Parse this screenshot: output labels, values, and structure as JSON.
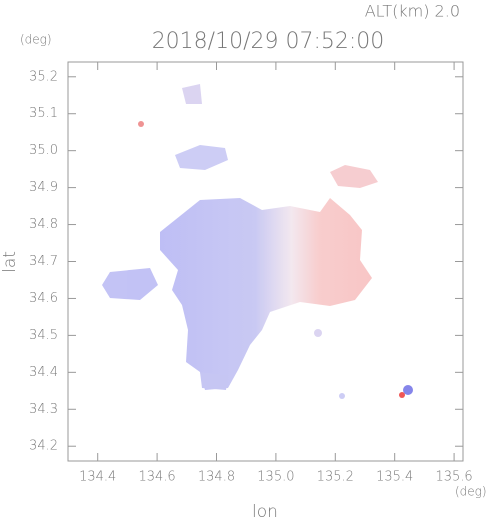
{
  "chart_data": {
    "type": "map",
    "title": "2018/10/29 07:52:00",
    "annotation": "ALT(km) 2.0",
    "x_label": "lon",
    "x_unit": "(deg)",
    "y_label": "lat",
    "y_unit": "(deg)",
    "xlim": [
      134.3,
      135.63
    ],
    "xticks": [
      134.4,
      134.6,
      134.8,
      {
        "value": 135,
        "label": "135.0"
      },
      135.2,
      135.4,
      135.6
    ],
    "ylim": [
      34.16,
      35.24
    ],
    "yticks": [
      34.2,
      34.3,
      34.4,
      34.5,
      34.6,
      34.7,
      34.8,
      34.9,
      {
        "value": 35,
        "label": "35.0"
      },
      35.1,
      35.2
    ]
  }
}
